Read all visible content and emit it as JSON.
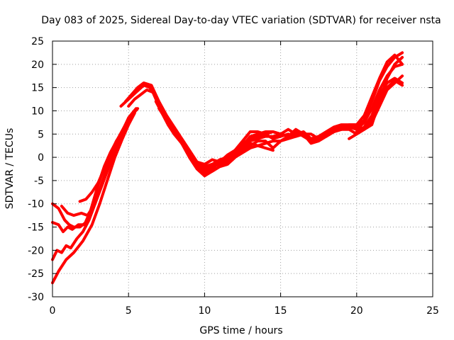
{
  "chart_data": {
    "type": "line",
    "title": "Day 083 of 2025, Sidereal Day-to-day VTEC variation (SDTVAR) for receiver nsta",
    "xlabel": "GPS time / hours",
    "ylabel": "SDTVAR / TECUs",
    "xlim": [
      0,
      25
    ],
    "ylim": [
      -30,
      25
    ],
    "xticks": [
      0,
      5,
      10,
      15,
      20,
      25
    ],
    "yticks": [
      -30,
      -25,
      -20,
      -15,
      -10,
      -5,
      0,
      5,
      10,
      15,
      20,
      25
    ],
    "grid": true,
    "color": "#ff0000",
    "series": [
      {
        "name": "trace-1",
        "x": [
          0.0,
          0.4,
          0.9,
          1.4,
          2.0,
          2.6,
          3.1,
          3.6,
          4.1,
          4.6,
          5.0,
          5.4
        ],
        "y": [
          -27.0,
          -24.5,
          -22.0,
          -20.5,
          -18.0,
          -14.5,
          -10.0,
          -5.0,
          0.0,
          4.0,
          7.0,
          9.5
        ]
      },
      {
        "name": "trace-2",
        "x": [
          0.0,
          0.3,
          0.6,
          0.9,
          1.2,
          1.6,
          2.0,
          2.4,
          2.8,
          3.2,
          3.6,
          4.0,
          4.5,
          5.0,
          5.5
        ],
        "y": [
          -22.0,
          -20.0,
          -20.5,
          -19.0,
          -19.5,
          -17.5,
          -16.0,
          -13.5,
          -10.0,
          -6.0,
          -2.0,
          2.0,
          5.0,
          8.5,
          10.5
        ]
      },
      {
        "name": "trace-3",
        "x": [
          0.0,
          0.4,
          0.7,
          1.0,
          1.3,
          1.7,
          2.1,
          2.5,
          2.9,
          3.3,
          3.7,
          4.2,
          4.7,
          5.2,
          5.6
        ],
        "y": [
          -14.0,
          -14.5,
          -16.0,
          -15.0,
          -15.5,
          -14.5,
          -14.5,
          -11.5,
          -7.0,
          -3.0,
          0.0,
          3.5,
          6.0,
          9.0,
          10.5
        ]
      },
      {
        "name": "trace-4",
        "x": [
          0.0,
          0.4,
          0.8,
          1.1,
          1.4,
          1.8,
          2.2,
          2.6,
          3.0,
          3.4,
          3.8,
          4.3,
          4.8,
          5.3
        ],
        "y": [
          -10.0,
          -11.0,
          -13.5,
          -14.5,
          -15.0,
          -15.0,
          -14.0,
          -11.0,
          -6.0,
          -2.0,
          1.0,
          4.0,
          7.0,
          9.0
        ]
      },
      {
        "name": "trace-5",
        "x": [
          0.6,
          1.0,
          1.4,
          1.9,
          2.3,
          2.8,
          3.2,
          3.6,
          4.0,
          4.5,
          5.0
        ],
        "y": [
          -10.5,
          -12.0,
          -12.5,
          -12.0,
          -12.5,
          -10.0,
          -6.5,
          -3.0,
          0.5,
          4.0,
          7.0
        ]
      },
      {
        "name": "trace-6",
        "x": [
          1.8,
          2.2,
          2.6,
          3.0,
          3.4,
          3.9,
          4.3,
          4.8
        ],
        "y": [
          -9.5,
          -9.0,
          -7.5,
          -5.5,
          -2.5,
          1.0,
          4.0,
          7.0
        ]
      },
      {
        "name": "trace-7",
        "x": [
          4.5,
          5.0,
          5.5,
          6.0,
          6.4,
          6.8,
          7.2,
          7.6,
          8.0,
          8.5,
          9.0,
          9.5,
          10.0,
          10.5,
          11.0,
          11.5,
          12.0,
          12.5,
          13.0,
          13.5,
          14.0,
          14.5,
          15.0,
          15.5,
          16.0,
          16.5,
          17.0,
          17.5,
          18.0,
          18.5,
          19.0,
          19.5,
          20.0,
          20.5,
          21.0,
          21.5,
          22.0,
          22.5,
          23.0
        ],
        "y": [
          11.0,
          12.5,
          14.0,
          15.5,
          15.0,
          13.0,
          10.0,
          7.5,
          5.5,
          3.0,
          0.5,
          -2.0,
          -3.5,
          -3.0,
          -2.0,
          -1.5,
          0.0,
          2.0,
          3.5,
          4.0,
          4.5,
          4.5,
          5.0,
          4.5,
          5.5,
          4.5,
          3.5,
          4.0,
          5.0,
          5.5,
          6.0,
          6.5,
          6.5,
          8.0,
          12.0,
          16.5,
          19.5,
          21.5,
          22.5
        ]
      },
      {
        "name": "trace-8",
        "x": [
          4.8,
          5.2,
          5.6,
          6.0,
          6.5,
          7.0,
          7.5,
          8.0,
          8.5,
          9.0,
          9.5,
          10.0,
          10.5,
          11.0,
          11.5,
          12.0,
          12.5,
          13.0,
          13.5,
          14.0,
          14.5,
          15.0,
          15.5,
          16.0,
          16.5,
          17.0,
          17.5,
          18.0,
          18.5,
          19.0,
          19.5,
          20.0,
          20.5,
          21.0,
          21.5,
          22.0,
          22.5,
          23.0
        ],
        "y": [
          12.0,
          13.5,
          15.0,
          16.0,
          15.5,
          12.0,
          9.0,
          6.5,
          4.0,
          1.5,
          -1.0,
          -2.5,
          -2.0,
          -1.5,
          -1.0,
          0.5,
          2.5,
          4.5,
          5.0,
          5.5,
          5.5,
          5.0,
          6.0,
          5.0,
          5.5,
          4.0,
          4.5,
          5.5,
          6.5,
          7.0,
          7.0,
          7.0,
          9.0,
          13.0,
          17.0,
          20.5,
          22.0,
          20.0
        ]
      },
      {
        "name": "trace-9",
        "x": [
          5.0,
          5.4,
          5.8,
          6.2,
          6.6,
          7.0,
          7.5,
          8.0,
          8.5,
          9.0,
          9.5,
          10.0,
          10.5,
          11.0,
          11.5,
          12.0,
          12.5,
          13.0,
          13.5,
          14.0,
          14.5,
          15.0,
          15.5,
          16.0,
          16.5,
          17.0,
          17.5,
          18.0,
          18.5,
          19.0,
          19.5,
          20.0,
          20.5,
          21.0,
          21.5,
          22.0,
          22.5,
          23.0
        ],
        "y": [
          11.0,
          12.5,
          13.5,
          14.5,
          14.0,
          11.0,
          8.0,
          5.5,
          3.0,
          0.5,
          -1.5,
          -3.0,
          -2.5,
          -1.0,
          -0.5,
          1.0,
          3.0,
          4.0,
          4.5,
          5.0,
          4.0,
          4.5,
          5.0,
          4.5,
          5.0,
          3.0,
          3.5,
          4.5,
          5.5,
          6.0,
          6.5,
          6.0,
          7.5,
          10.5,
          14.5,
          17.5,
          19.5,
          20.0
        ]
      },
      {
        "name": "trace-10",
        "x": [
          6.8,
          7.2,
          7.6,
          8.0,
          8.5,
          9.0,
          9.5,
          10.0,
          10.5,
          11.0,
          11.5,
          12.0,
          12.5,
          13.0,
          13.5,
          14.0,
          14.5,
          15.0,
          15.5,
          16.0,
          16.5,
          17.0,
          17.5,
          18.0,
          18.5,
          19.0,
          19.5,
          20.0,
          20.5,
          21.0,
          21.5,
          22.0,
          22.5,
          23.0
        ],
        "y": [
          12.0,
          9.5,
          7.0,
          5.0,
          3.0,
          0.0,
          -2.5,
          -4.0,
          -3.0,
          -2.0,
          -1.5,
          0.0,
          1.5,
          2.5,
          3.5,
          3.5,
          2.0,
          3.5,
          4.0,
          4.5,
          5.0,
          3.5,
          4.0,
          4.5,
          5.5,
          6.0,
          6.0,
          5.0,
          6.5,
          9.0,
          13.5,
          16.0,
          17.0,
          16.0
        ]
      },
      {
        "name": "trace-11",
        "x": [
          7.0,
          7.5,
          8.0,
          8.5,
          9.0,
          9.5,
          10.0,
          10.5,
          11.0,
          11.5,
          12.0,
          12.5,
          13.0,
          13.5,
          14.0,
          14.5,
          15.0,
          15.5,
          16.0,
          16.5,
          17.0,
          17.5,
          18.0,
          18.5,
          19.0,
          19.5,
          20.0,
          20.5,
          21.0,
          21.5,
          22.0,
          22.5,
          23.0
        ],
        "y": [
          10.5,
          8.0,
          6.0,
          4.0,
          1.5,
          -1.0,
          -2.0,
          -1.5,
          -1.0,
          -1.5,
          0.0,
          1.0,
          2.0,
          2.5,
          3.0,
          3.5,
          3.5,
          4.5,
          6.0,
          5.0,
          5.0,
          4.0,
          5.0,
          6.0,
          6.5,
          7.0,
          7.0,
          6.0,
          7.0,
          12.0,
          15.0,
          16.5,
          15.5
        ]
      },
      {
        "name": "trace-12",
        "x": [
          9.5,
          10.0,
          10.5,
          11.0,
          11.5,
          12.0,
          12.5,
          13.0,
          13.5,
          14.0,
          14.5,
          15.0,
          15.5
        ],
        "y": [
          -1.0,
          -1.5,
          -0.5,
          -1.0,
          0.5,
          1.5,
          3.5,
          5.5,
          5.5,
          5.0,
          5.5,
          5.0,
          4.5
        ]
      },
      {
        "name": "trace-13",
        "x": [
          10.0,
          10.5,
          11.0,
          11.5,
          12.0,
          12.5,
          13.0,
          13.5,
          14.0,
          14.5
        ],
        "y": [
          -2.0,
          -1.5,
          -0.5,
          0.0,
          1.5,
          2.0,
          3.0,
          2.5,
          2.0,
          1.5
        ]
      },
      {
        "name": "trace-14",
        "x": [
          19.5,
          20.0,
          20.5,
          21.0,
          21.5,
          22.0,
          22.5,
          23.0
        ],
        "y": [
          4.0,
          5.0,
          6.0,
          8.0,
          12.0,
          17.0,
          20.0,
          21.5
        ]
      },
      {
        "name": "trace-15",
        "x": [
          20.0,
          20.5,
          21.0,
          21.5,
          22.0,
          22.5,
          23.0
        ],
        "y": [
          5.5,
          6.5,
          7.5,
          11.0,
          14.5,
          16.0,
          17.5
        ]
      }
    ]
  }
}
